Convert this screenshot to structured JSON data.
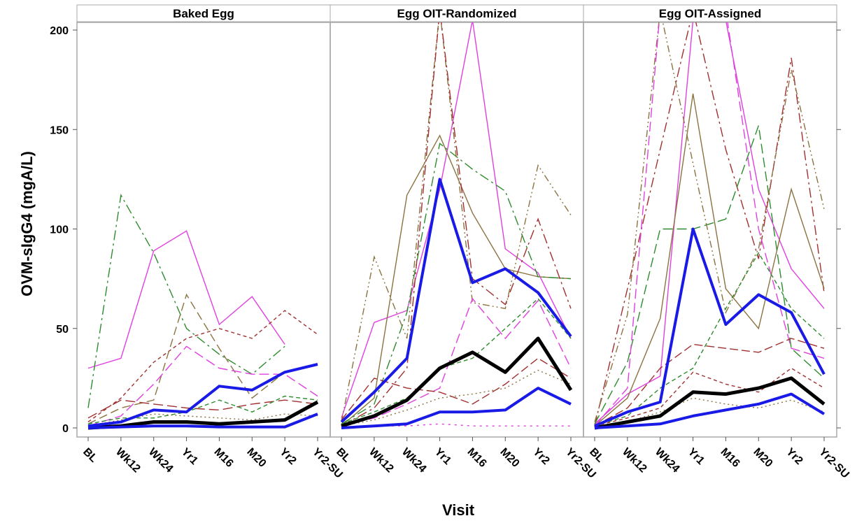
{
  "chart_data": {
    "type": "line",
    "ylabel": "OVM-sIgG4 (mgA/L)",
    "xlabel": "Visit",
    "x": [
      "BL",
      "Wk12",
      "Wk24",
      "Yr1",
      "M16",
      "M20",
      "Yr2",
      "Yr2-SU"
    ],
    "ylim": [
      0,
      200
    ],
    "yticks": [
      0,
      50,
      100,
      150,
      200
    ],
    "grid": false,
    "colors": {
      "mean": "#000000",
      "median_quartile": "#1a1ae6",
      "magenta": "#e040e0",
      "green": "#2e8b2e",
      "olive": "#8b7340",
      "brown": "#a03030"
    },
    "panels": [
      {
        "title": "Baked Egg",
        "summary_series": [
          {
            "role": "mean",
            "values": [
              0,
              1,
              3,
              3,
              2,
              3,
              4,
              13
            ]
          },
          {
            "role": "upper",
            "values": [
              1,
              3,
              9,
              8,
              21,
              19,
              28,
              32
            ]
          },
          {
            "role": "lower",
            "values": [
              0,
              0.5,
              1,
              1,
              0.5,
              0.5,
              0.5,
              7
            ]
          }
        ],
        "individual": [
          {
            "color": "magenta",
            "dash": "",
            "values": [
              30,
              35,
              89,
              99,
              52,
              66,
              42,
              null
            ]
          },
          {
            "color": "green",
            "dash": "14 5 3 5",
            "values": [
              10,
              117,
              88,
              50,
              37,
              27,
              41,
              null
            ]
          },
          {
            "color": "brown",
            "dash": "5 4",
            "values": [
              3,
              15,
              33,
              45,
              50,
              45,
              59,
              47
            ]
          },
          {
            "color": "olive",
            "dash": "12 6",
            "values": [
              2,
              10,
              14,
              67,
              40,
              15,
              28,
              null
            ]
          },
          {
            "color": "magenta",
            "dash": "14 6",
            "values": [
              1,
              6,
              22,
              41,
              30,
              27,
              27,
              16
            ]
          },
          {
            "color": "brown",
            "dash": "14 6",
            "values": [
              5,
              14,
              12,
              10,
              9,
              12,
              14,
              12
            ]
          },
          {
            "color": "green",
            "dash": "6 4",
            "values": [
              2,
              5,
              5,
              8,
              14,
              8,
              16,
              14
            ]
          },
          {
            "color": "olive",
            "dash": "2 4",
            "values": [
              1,
              4,
              7,
              6,
              5,
              4,
              7,
              6
            ]
          }
        ]
      },
      {
        "title": "Egg OIT-Randomized",
        "summary_series": [
          {
            "role": "mean",
            "values": [
              1,
              6,
              14,
              30,
              38,
              28,
              45,
              19
            ]
          },
          {
            "role": "upper",
            "values": [
              3,
              18,
              35,
              125,
              73,
              80,
              68,
              46
            ]
          },
          {
            "role": "lower",
            "values": [
              0,
              1,
              2,
              8,
              8,
              9,
              20,
              12
            ]
          }
        ],
        "individual": [
          {
            "color": "magenta",
            "dash": "",
            "values": [
              5,
              53,
              59,
              120,
              205,
              90,
              78,
              45
            ]
          },
          {
            "color": "olive",
            "dash": "",
            "values": [
              1,
              15,
              117,
              147,
              108,
              80,
              76,
              75
            ]
          },
          {
            "color": "green",
            "dash": "14 5 3 5",
            "values": [
              2,
              12,
              58,
              143,
              130,
              119,
              76,
              75
            ]
          },
          {
            "color": "olive",
            "dash": "10 4 2 4 2 4",
            "values": [
              3,
              86,
              45,
              210,
              63,
              60,
              132,
              107
            ]
          },
          {
            "color": "brown",
            "dash": "14 5 3 5",
            "values": [
              1,
              10,
              30,
              210,
              75,
              62,
              105,
              60
            ]
          },
          {
            "color": "magenta",
            "dash": "14 6",
            "values": [
              1,
              5,
              12,
              20,
              65,
              45,
              64,
              30
            ]
          },
          {
            "color": "brown",
            "dash": "12 5",
            "values": [
              4,
              25,
              20,
              18,
              12,
              22,
              35,
              25
            ]
          },
          {
            "color": "green",
            "dash": "6 4",
            "values": [
              2,
              8,
              15,
              30,
              35,
              50,
              65,
              45
            ]
          },
          {
            "color": "olive",
            "dash": "2 4",
            "values": [
              1,
              4,
              9,
              15,
              17,
              20,
              29,
              22
            ]
          },
          {
            "color": "magenta",
            "dash": "3 6",
            "values": [
              0,
              1,
              1,
              2,
              1,
              1,
              1,
              1
            ]
          }
        ]
      },
      {
        "title": "Egg OIT-Assigned",
        "summary_series": [
          {
            "role": "mean",
            "values": [
              0,
              3,
              6,
              18,
              17,
              20,
              25,
              12
            ]
          },
          {
            "role": "upper",
            "values": [
              1,
              8,
              13,
              100,
              52,
              67,
              58,
              27
            ]
          },
          {
            "role": "lower",
            "values": [
              0,
              1,
              2,
              6,
              9,
              12,
              17,
              7
            ]
          }
        ],
        "individual": [
          {
            "color": "magenta",
            "dash": "",
            "values": [
              2,
              17,
              26,
              205,
              205,
              120,
              80,
              60
            ]
          },
          {
            "color": "brown",
            "dash": "14 5 3 5",
            "values": [
              1,
              70,
              140,
              210,
              140,
              85,
              186,
              68
            ]
          },
          {
            "color": "olive",
            "dash": "",
            "values": [
              1,
              15,
              55,
              168,
              70,
              50,
              120,
              70
            ]
          },
          {
            "color": "green",
            "dash": "14 6",
            "values": [
              2,
              33,
              100,
              100,
              105,
              152,
              40,
              25
            ]
          },
          {
            "color": "olive",
            "dash": "10 4 2 4 2 4",
            "values": [
              3,
              57,
              210,
              133,
              58,
              90,
              180,
              110
            ]
          },
          {
            "color": "magenta",
            "dash": "14 6",
            "values": [
              1,
              20,
              210,
              210,
              210,
              100,
              40,
              35
            ]
          },
          {
            "color": "brown",
            "dash": "12 5",
            "values": [
              1,
              10,
              30,
              42,
              40,
              38,
              45,
              40
            ]
          },
          {
            "color": "green",
            "dash": "6 4",
            "values": [
              1,
              6,
              20,
              30,
              60,
              88,
              60,
              45
            ]
          },
          {
            "color": "brown",
            "dash": "5 4",
            "values": [
              1,
              5,
              10,
              28,
              22,
              18,
              30,
              20
            ]
          },
          {
            "color": "olive",
            "dash": "2 4",
            "values": [
              0,
              3,
              8,
              15,
              12,
              10,
              14,
              8
            ]
          }
        ]
      }
    ]
  }
}
